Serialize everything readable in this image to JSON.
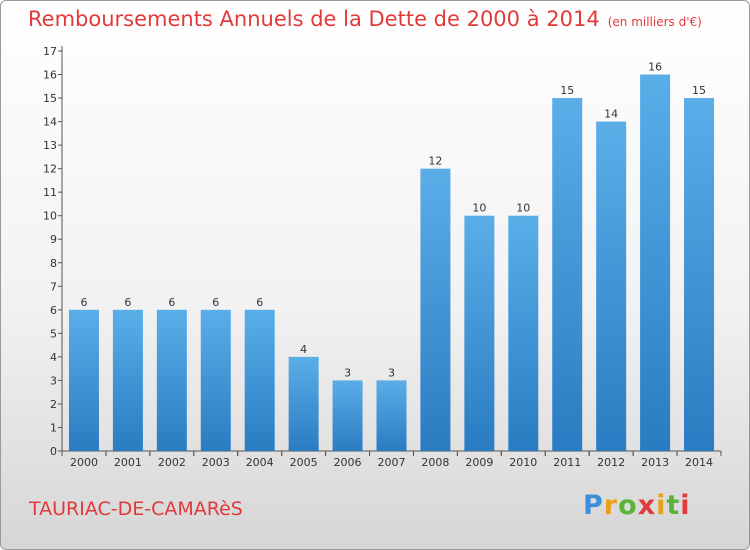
{
  "header": {
    "title": "Remboursements Annuels de la Dette de 2000 à 2014",
    "subtitle": "(en milliers d'€)"
  },
  "footer": {
    "commune": "TAURIAC-DE-CAMARèS",
    "logo": "Proxiti"
  },
  "colors": {
    "title": "#e23a3a",
    "bar_top": "#5aaee8",
    "bar_bottom": "#2a7cc2"
  },
  "chart_data": {
    "type": "bar",
    "title": "Remboursements Annuels de la Dette de 2000 à 2014",
    "xlabel": "",
    "ylabel": "en milliers d'€",
    "categories": [
      "2000",
      "2001",
      "2002",
      "2003",
      "2004",
      "2005",
      "2006",
      "2007",
      "2008",
      "2009",
      "2010",
      "2011",
      "2012",
      "2013",
      "2014"
    ],
    "values": [
      6,
      6,
      6,
      6,
      6,
      4,
      3,
      3,
      12,
      10,
      10,
      15,
      14,
      16,
      15
    ],
    "ylim": [
      0,
      17
    ],
    "yticks": [
      0,
      1,
      2,
      3,
      4,
      5,
      6,
      7,
      8,
      9,
      10,
      11,
      12,
      13,
      14,
      15,
      16,
      17
    ],
    "grid": false
  }
}
